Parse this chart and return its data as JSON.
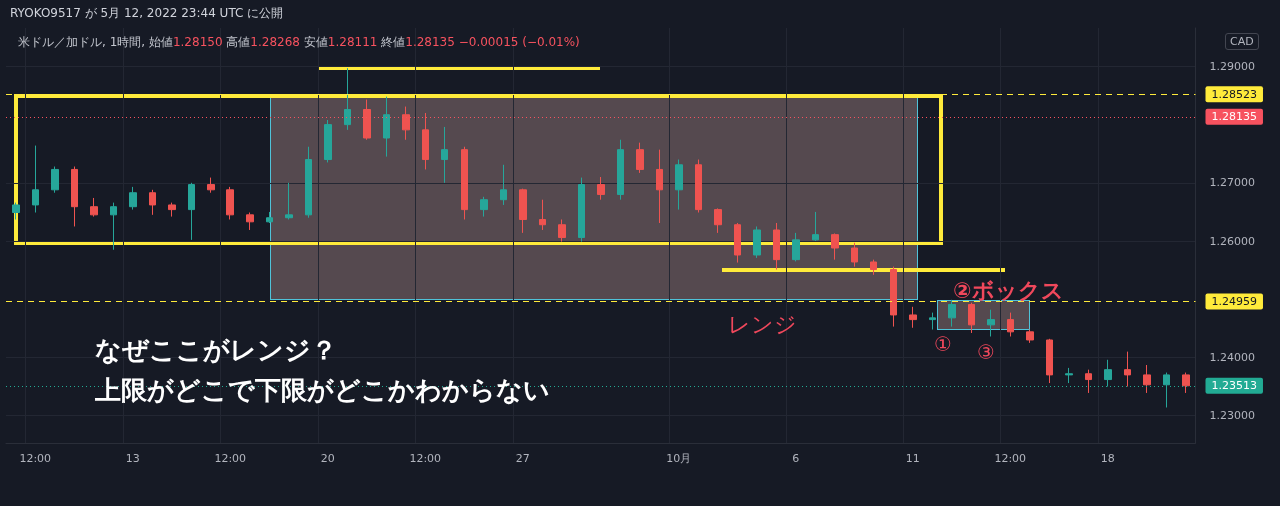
{
  "chart_data": {
    "type": "candlestick",
    "title": "RYOKO9517 が 5月 12, 2022 23:44 UTC に公開",
    "subtitle": "米ドル／加ドル, 1時間, 始値1.28150 高値1.28268 安値1.28111 終値1.28135 −0.00015 (−0.01%)",
    "categories": [
      null,
      "12:00",
      null,
      null,
      null,
      null,
      "13",
      null,
      null,
      null,
      null,
      "12:00",
      null,
      null,
      null,
      null,
      "20",
      null,
      null,
      null,
      null,
      "12:00",
      null,
      null,
      null,
      null,
      "27",
      null,
      null,
      null,
      null,
      null,
      null,
      null,
      "10月",
      null,
      null,
      null,
      null,
      null,
      "6",
      null,
      null,
      null,
      null,
      null,
      "11",
      null,
      null,
      null,
      null,
      "12:00",
      null,
      null,
      null,
      null,
      "18",
      null,
      null,
      null,
      null
    ],
    "ohlc": [
      [
        1.2649,
        1.2666,
        1.2637,
        1.2662
      ],
      [
        1.2662,
        1.2764,
        1.2649,
        1.2688
      ],
      [
        1.2688,
        1.2728,
        1.2683,
        1.2723
      ],
      [
        1.2723,
        1.2728,
        1.2625,
        1.2659
      ],
      [
        1.2659,
        1.2674,
        1.2642,
        1.2645
      ],
      [
        1.2645,
        1.2666,
        1.2585,
        1.2659
      ],
      [
        1.2659,
        1.2693,
        1.2654,
        1.2683
      ],
      [
        1.2683,
        1.2688,
        1.2645,
        1.2662
      ],
      [
        1.2662,
        1.2666,
        1.2642,
        1.2654
      ],
      [
        1.2654,
        1.27,
        1.2602,
        1.2697
      ],
      [
        1.2697,
        1.2709,
        1.2683,
        1.2688
      ],
      [
        1.2688,
        1.2693,
        1.2637,
        1.2645
      ],
      [
        1.2645,
        1.2649,
        1.2619,
        1.2633
      ],
      [
        1.2633,
        1.265,
        1.2631,
        1.264
      ],
      [
        1.264,
        1.27,
        1.2637,
        1.2645
      ],
      [
        1.2645,
        1.2762,
        1.264,
        1.274
      ],
      [
        1.274,
        1.2808,
        1.2735,
        1.28
      ],
      [
        1.28,
        1.2897,
        1.2791,
        1.2826
      ],
      [
        1.2826,
        1.2843,
        1.2774,
        1.2777
      ],
      [
        1.2777,
        1.2848,
        1.2745,
        1.2817
      ],
      [
        1.2817,
        1.2831,
        1.2774,
        1.2791
      ],
      [
        1.2791,
        1.282,
        1.2723,
        1.274
      ],
      [
        1.274,
        1.2796,
        1.27,
        1.2757
      ],
      [
        1.2757,
        1.2762,
        1.2637,
        1.2654
      ],
      [
        1.2654,
        1.2676,
        1.2642,
        1.2671
      ],
      [
        1.2671,
        1.2731,
        1.2662,
        1.2688
      ],
      [
        1.2688,
        1.269,
        1.2614,
        1.2637
      ],
      [
        1.2637,
        1.2671,
        1.2619,
        1.2628
      ],
      [
        1.2628,
        1.2637,
        1.2599,
        1.2606
      ],
      [
        1.2606,
        1.2709,
        1.2599,
        1.2697
      ],
      [
        1.2697,
        1.271,
        1.2671,
        1.268
      ],
      [
        1.268,
        1.2774,
        1.2671,
        1.2757
      ],
      [
        1.2757,
        1.2769,
        1.2717,
        1.2723
      ],
      [
        1.2723,
        1.2757,
        1.2631,
        1.2688
      ],
      [
        1.2688,
        1.274,
        1.2654,
        1.2731
      ],
      [
        1.2731,
        1.274,
        1.2649,
        1.2654
      ],
      [
        1.2654,
        1.2656,
        1.2614,
        1.2628
      ],
      [
        1.2628,
        1.2631,
        1.2563,
        1.2576
      ],
      [
        1.2576,
        1.2625,
        1.2571,
        1.2619
      ],
      [
        1.2619,
        1.2631,
        1.2551,
        1.2568
      ],
      [
        1.2568,
        1.2614,
        1.2565,
        1.2602
      ],
      [
        1.2602,
        1.265,
        1.26,
        1.2611
      ],
      [
        1.2611,
        1.2613,
        1.2568,
        1.2588
      ],
      [
        1.2588,
        1.2597,
        1.2556,
        1.2564
      ],
      [
        1.2564,
        1.2568,
        1.2542,
        1.2551
      ],
      [
        1.2551,
        1.2556,
        1.2453,
        1.2473
      ],
      [
        1.2473,
        1.2487,
        1.2451,
        1.2465
      ],
      [
        1.2465,
        1.2477,
        1.2448,
        1.2468
      ],
      [
        1.2468,
        1.2499,
        1.2453,
        1.2491
      ],
      [
        1.2491,
        1.2494,
        1.2442,
        1.2456
      ],
      [
        1.2456,
        1.2482,
        1.2436,
        1.2465
      ],
      [
        1.2465,
        1.2477,
        1.2436,
        1.2444
      ],
      [
        1.2444,
        1.2448,
        1.2425,
        1.243
      ],
      [
        1.243,
        1.2432,
        1.2356,
        1.237
      ],
      [
        1.237,
        1.2382,
        1.2356,
        1.2372
      ],
      [
        1.2372,
        1.2379,
        1.2339,
        1.2362
      ],
      [
        1.2362,
        1.2396,
        1.235,
        1.2379
      ],
      [
        1.2379,
        1.241,
        1.235,
        1.237
      ],
      [
        1.237,
        1.2387,
        1.2339,
        1.2353
      ],
      [
        1.2353,
        1.2374,
        1.2314,
        1.237
      ],
      [
        1.237,
        1.2374,
        1.2339,
        1.23513
      ]
    ],
    "colors": [
      "#26a69a",
      "#26a69a",
      "#26a69a",
      "#ef5350",
      "#ef5350",
      "#26a69a",
      "#26a69a",
      "#ef5350",
      "#ef5350",
      "#26a69a",
      "#ef5350",
      "#ef5350",
      "#ef5350",
      "#26a69a",
      "#26a69a",
      "#26a69a",
      "#26a69a",
      "#26a69a",
      "#ef5350",
      "#26a69a",
      "#ef5350",
      "#ef5350",
      "#26a69a",
      "#ef5350",
      "#26a69a",
      "#26a69a",
      "#ef5350",
      "#ef5350",
      "#ef5350",
      "#26a69a",
      "#ef5350",
      "#26a69a",
      "#ef5350",
      "#ef5350",
      "#26a69a",
      "#ef5350",
      "#ef5350",
      "#ef5350",
      "#26a69a",
      "#ef5350",
      "#26a69a",
      "#26a69a",
      "#ef5350",
      "#ef5350",
      "#ef5350",
      "#ef5350",
      "#ef5350",
      "#26a69a",
      "#26a69a",
      "#ef5350",
      "#26a69a",
      "#ef5350",
      "#ef5350",
      "#ef5350",
      "#26a69a",
      "#ef5350",
      "#26a69a",
      "#ef5350",
      "#ef5350",
      "#26a69a",
      "#ef5350"
    ],
    "ylim": [
      1.2253,
      1.2966
    ],
    "yticks": [
      {
        "value": 1.23,
        "label": "1.23000"
      },
      {
        "value": 1.24,
        "label": "1.24000"
      },
      {
        "value": 1.26,
        "label": "1.26000"
      },
      {
        "value": 1.27,
        "label": "1.27000"
      },
      {
        "value": 1.29,
        "label": "1.29000"
      }
    ],
    "ref_lines": [
      {
        "axis": "y",
        "value": 1.28523,
        "label": "1.28523",
        "color": "#ffeb3b",
        "line_style": "dashed"
      },
      {
        "axis": "y",
        "value": 1.28135,
        "label": "1.28135",
        "color": "#f7525f",
        "line_style": "dotted"
      },
      {
        "axis": "y",
        "value": 1.24959,
        "label": "1.24959",
        "color": "#ffeb3b",
        "line_style": "dashed"
      },
      {
        "axis": "y",
        "value": 1.23513,
        "label": "1.23513",
        "color": "#22ab94",
        "line_style": "dotted"
      }
    ],
    "annotations": [
      "レンジ",
      "②ボックス",
      "①",
      "③",
      "なぜここがレンジ？",
      "上限がどこで下限がどこかわからない",
      "CAD"
    ],
    "grid": true
  }
}
